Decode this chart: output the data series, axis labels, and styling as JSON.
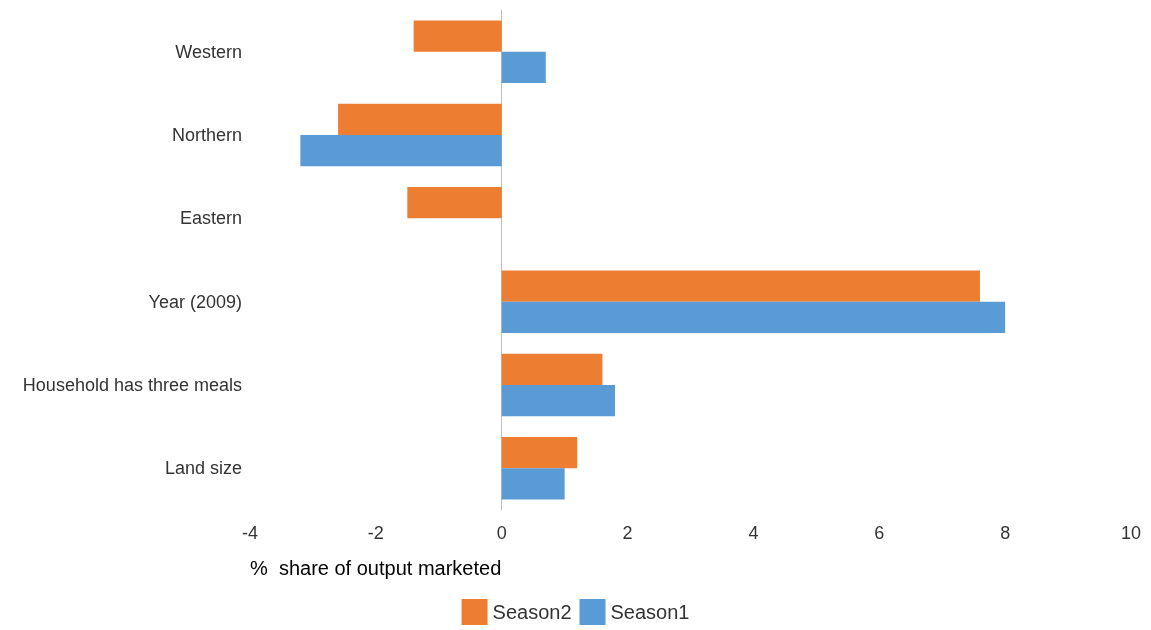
{
  "chart_data": {
    "type": "bar",
    "orientation": "horizontal",
    "xlabel": "%  share of output marketed",
    "categories": [
      "Western",
      "Northern",
      "Eastern",
      "Year (2009)",
      "Household has three meals",
      "Land size"
    ],
    "series": [
      {
        "name": "Season2",
        "color": "#ed7d31",
        "values": [
          -1.4,
          -2.6,
          -1.5,
          7.6,
          1.6,
          1.2
        ]
      },
      {
        "name": "Season1",
        "color": "#5b9bd5",
        "values": [
          0.7,
          -3.2,
          null,
          8.0,
          1.8,
          1.0
        ]
      }
    ],
    "xlim": [
      -4,
      10
    ],
    "xticks": [
      -4,
      -2,
      0,
      2,
      4,
      6,
      8,
      10
    ],
    "legend": "bottom"
  }
}
